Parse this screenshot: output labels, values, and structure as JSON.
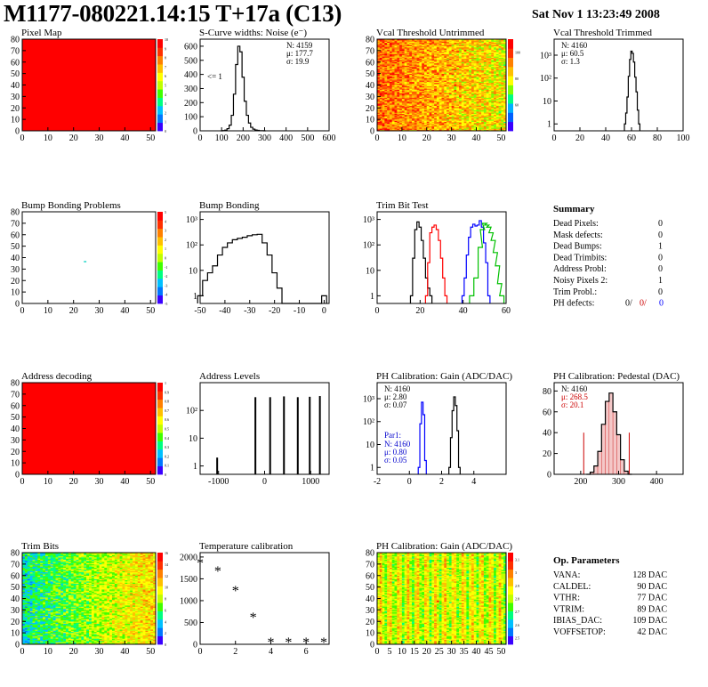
{
  "header": {
    "title": "M1177-080221.14:15 T+17a (C13)",
    "date": "Sat Nov  1 13:23:49 2008"
  },
  "chart_data": [
    {
      "id": "pixel-map",
      "type": "heatmap",
      "title": "Pixel Map",
      "xticks": [
        "0",
        "10",
        "20",
        "30",
        "40",
        "50"
      ],
      "yticks": [
        "0",
        "10",
        "20",
        "30",
        "40",
        "50",
        "60",
        "70",
        "80"
      ],
      "xlim": [
        0,
        52
      ],
      "ylim": [
        0,
        80
      ],
      "uniform_color": "#ff0000",
      "zticks": [
        "0",
        "1",
        "2",
        "3",
        "4",
        "5",
        "6",
        "7",
        "8",
        "9",
        "10"
      ],
      "zlim": [
        0,
        10
      ],
      "zcolors": [
        "#3a00ff",
        "#0077ff",
        "#00c0ff",
        "#00ff80",
        "#40ff00",
        "#c0ff00",
        "#ffff00",
        "#ffc000",
        "#ff8000",
        "#ff3000",
        "#ff0000"
      ]
    },
    {
      "id": "scurve-widths",
      "type": "line",
      "title": "S-Curve widths: Noise (e⁻)",
      "xticks": [
        "0",
        "100",
        "200",
        "300",
        "400",
        "500",
        "600"
      ],
      "yticks": [
        "0",
        "100",
        "200",
        "300",
        "400",
        "500",
        "600"
      ],
      "xlim": [
        0,
        600
      ],
      "ylim": [
        0,
        650
      ],
      "annotation": "<= 1",
      "stats": [
        "N: 4159",
        "μ: 177.7",
        "σ: 19.9"
      ],
      "x": [
        100,
        110,
        120,
        130,
        140,
        150,
        160,
        170,
        180,
        190,
        200,
        210,
        220,
        230,
        240,
        250,
        260,
        270,
        280,
        290,
        300
      ],
      "y": [
        0,
        2,
        5,
        15,
        40,
        110,
        260,
        470,
        600,
        560,
        380,
        210,
        110,
        55,
        25,
        12,
        6,
        3,
        1,
        1,
        0
      ]
    },
    {
      "id": "vcal-untrimmed",
      "type": "heatmap",
      "title": "Vcal Threshold Untrimmed",
      "xticks": [
        "0",
        "10",
        "20",
        "30",
        "40",
        "50"
      ],
      "yticks": [
        "0",
        "10",
        "20",
        "30",
        "40",
        "50",
        "60",
        "70",
        "80"
      ],
      "xlim": [
        0,
        52
      ],
      "ylim": [
        0,
        80
      ],
      "zticks": [
        "60",
        "80",
        "100"
      ],
      "zlim": [
        40,
        110
      ],
      "zcolors": [
        "#3a00ff",
        "#0060ff",
        "#00b0ff",
        "#00ff80",
        "#80ff00",
        "#ffff00",
        "#ffc000",
        "#ff8000",
        "#ff3000",
        "#ff0000"
      ]
    },
    {
      "id": "vcal-trimmed",
      "type": "line",
      "title": "Vcal Threshold Trimmed",
      "log": true,
      "xticks": [
        "0",
        "20",
        "40",
        "60",
        "80",
        "100"
      ],
      "yticks": [
        "1",
        "10",
        "10²",
        "10³"
      ],
      "xlim": [
        0,
        100
      ],
      "ylim": [
        0.5,
        5000
      ],
      "stats": [
        "N: 4160",
        "μ: 60.5",
        "σ:  1.3"
      ],
      "x": [
        55,
        56,
        57,
        58,
        59,
        60,
        61,
        62,
        63,
        64,
        65,
        66
      ],
      "y": [
        1,
        3,
        15,
        120,
        650,
        1500,
        1200,
        500,
        110,
        25,
        4,
        1
      ]
    },
    {
      "id": "bump-bonding-problems",
      "type": "heatmap",
      "title": "Bump Bonding Problems",
      "xticks": [
        "0",
        "10",
        "20",
        "30",
        "40",
        "50"
      ],
      "yticks": [
        "0",
        "10",
        "20",
        "30",
        "40",
        "50",
        "60",
        "70",
        "80"
      ],
      "xlim": [
        0,
        52
      ],
      "ylim": [
        0,
        80
      ],
      "zticks": [
        "-5",
        "-4",
        "-3",
        "-2",
        "-1",
        "0",
        "1",
        "2",
        "3",
        "4",
        "5"
      ],
      "zlim": [
        -5,
        5
      ],
      "zcolors": [
        "#3a00ff",
        "#0077ff",
        "#00c0ff",
        "#00ff80",
        "#40ff00",
        "#c0ff00",
        "#ffff00",
        "#ffc000",
        "#ff8000",
        "#ff3000",
        "#ff0000"
      ],
      "points": [
        {
          "x": 24,
          "y": 36
        }
      ]
    },
    {
      "id": "bump-bonding",
      "type": "line",
      "title": "Bump Bonding",
      "log": true,
      "xticks": [
        "-50",
        "-40",
        "-30",
        "-20",
        "-10",
        "0"
      ],
      "yticks": [
        "1",
        "10",
        "10²",
        "10³"
      ],
      "xlim": [
        -50,
        2
      ],
      "ylim": [
        0.5,
        2000
      ],
      "x": [
        -50,
        -48,
        -46,
        -44,
        -42,
        -40,
        -38,
        -36,
        -34,
        -32,
        -30,
        -28,
        -26,
        -24,
        -22,
        -20,
        -18,
        -16,
        -14,
        -12,
        -10,
        -8,
        -6,
        -4,
        -2,
        0
      ],
      "y": [
        1,
        4,
        8,
        15,
        40,
        80,
        120,
        160,
        180,
        200,
        230,
        250,
        260,
        120,
        40,
        8,
        2,
        0,
        0,
        0,
        0,
        0,
        0,
        0,
        0,
        1
      ]
    },
    {
      "id": "trim-bit-test",
      "type": "line",
      "title": "Trim Bit Test",
      "log": true,
      "xticks": [
        "0",
        "20",
        "40",
        "60"
      ],
      "yticks": [
        "1",
        "10",
        "10²",
        "10³"
      ],
      "xlim": [
        0,
        60
      ],
      "ylim": [
        0.5,
        2000
      ],
      "series": [
        {
          "color": "#000000",
          "x": [
            16,
            17,
            18,
            19,
            20,
            21,
            22,
            23,
            24,
            25
          ],
          "y": [
            1,
            30,
            400,
            800,
            500,
            150,
            30,
            5,
            2,
            1
          ]
        },
        {
          "color": "#ff0000",
          "x": [
            23,
            24,
            25,
            26,
            27,
            28,
            29,
            30,
            31,
            32
          ],
          "y": [
            1,
            20,
            300,
            500,
            600,
            400,
            150,
            30,
            5,
            1
          ]
        },
        {
          "color": "#0000ff",
          "x": [
            40,
            41,
            42,
            43,
            44,
            45,
            46,
            47,
            48,
            49,
            50,
            51,
            52
          ],
          "y": [
            1,
            5,
            40,
            200,
            500,
            650,
            550,
            600,
            900,
            500,
            120,
            20,
            1
          ]
        },
        {
          "color": "#00c000",
          "x": [
            44,
            46,
            48,
            49,
            50,
            51,
            52,
            53,
            54,
            55,
            56,
            57,
            58
          ],
          "y": [
            1,
            5,
            80,
            400,
            700,
            600,
            500,
            300,
            150,
            50,
            15,
            3,
            1
          ]
        }
      ]
    },
    {
      "id": "address-decoding",
      "type": "heatmap",
      "title": "Address decoding",
      "xticks": [
        "0",
        "10",
        "20",
        "30",
        "40",
        "50"
      ],
      "yticks": [
        "0",
        "10",
        "20",
        "30",
        "40",
        "50",
        "60",
        "70",
        "80"
      ],
      "xlim": [
        0,
        52
      ],
      "ylim": [
        0,
        80
      ],
      "uniform_color": "#ff0000",
      "zticks": [
        "0",
        "0.1",
        "0.2",
        "0.3",
        "0.4",
        "0.5",
        "0.6",
        "0.7",
        "0.8",
        "0.9",
        "1"
      ],
      "zlim": [
        0,
        1
      ],
      "zcolors": [
        "#3a00ff",
        "#0077ff",
        "#00c0ff",
        "#00ff80",
        "#40ff00",
        "#c0ff00",
        "#ffff00",
        "#ffc000",
        "#ff8000",
        "#ff3000",
        "#ff0000"
      ]
    },
    {
      "id": "address-levels",
      "type": "bar",
      "title": "Address Levels",
      "log": true,
      "xticks": [
        "-1000",
        "0",
        "1000"
      ],
      "yticks": [
        "1",
        "10",
        "10²"
      ],
      "xlim": [
        -1400,
        1400
      ],
      "ylim": [
        0.5,
        1000
      ],
      "x": [
        -1030,
        -200,
        120,
        420,
        720,
        980,
        1200
      ],
      "y": [
        2,
        300,
        300,
        320,
        300,
        310,
        330
      ]
    },
    {
      "id": "ph-gain-hist",
      "type": "line",
      "title": "PH Calibration: Gain (ADC/DAC)",
      "log": true,
      "xticks": [
        "-2",
        "0",
        "2",
        "4"
      ],
      "yticks": [
        "1",
        "10",
        "10²",
        "10³"
      ],
      "xlim": [
        -2,
        6
      ],
      "ylim": [
        0.5,
        5000
      ],
      "stats": [
        "N: 4160",
        "μ: 2.80",
        "σ: 0.07"
      ],
      "par1_label": "Par1:",
      "par1_stats": [
        "N: 4160",
        "μ: 0.80",
        "σ: 0.05"
      ],
      "series": [
        {
          "color": "#000000",
          "x": [
            2.5,
            2.6,
            2.7,
            2.8,
            2.9,
            3.0,
            3.1
          ],
          "y": [
            1,
            20,
            300,
            1200,
            500,
            40,
            1
          ]
        },
        {
          "color": "#0000ff",
          "x": [
            0.6,
            0.7,
            0.8,
            0.9,
            1.0
          ],
          "y": [
            1,
            80,
            700,
            200,
            2
          ]
        }
      ]
    },
    {
      "id": "ph-pedestal",
      "type": "bar",
      "title": "PH Calibration: Pedestal (DAC)",
      "xticks": [
        "200",
        "300",
        "400"
      ],
      "yticks": [
        "0",
        "20",
        "40",
        "60",
        "80"
      ],
      "xlim": [
        130,
        470
      ],
      "ylim": [
        0,
        88
      ],
      "stats": [
        "N: 4160",
        "μ: 268.5",
        "σ: 20.1"
      ],
      "x": [
        220,
        230,
        240,
        250,
        260,
        270,
        280,
        290,
        300,
        310,
        320,
        330
      ],
      "y": [
        0,
        2,
        8,
        22,
        48,
        70,
        78,
        60,
        38,
        14,
        3,
        0
      ]
    },
    {
      "id": "trim-bits",
      "type": "heatmap",
      "title": "Trim Bits",
      "xticks": [
        "0",
        "10",
        "20",
        "30",
        "40",
        "50"
      ],
      "yticks": [
        "0",
        "10",
        "20",
        "30",
        "40",
        "50",
        "60",
        "70",
        "80"
      ],
      "xlim": [
        0,
        52
      ],
      "ylim": [
        0,
        80
      ],
      "zticks": [
        "0",
        "2",
        "4",
        "6",
        "8",
        "10",
        "12",
        "14",
        "16"
      ],
      "zlim": [
        0,
        16
      ],
      "zcolors": [
        "#3a00ff",
        "#0077ff",
        "#00c0ff",
        "#00ff80",
        "#40ff00",
        "#c0ff00",
        "#ffff00",
        "#ffc000",
        "#ff8000",
        "#ff3000",
        "#ff0000"
      ]
    },
    {
      "id": "temperature-calibration",
      "type": "scatter",
      "title": "Temperature calibration",
      "xticks": [
        "0",
        "2",
        "4",
        "6"
      ],
      "yticks": [
        "0",
        "500",
        "1000",
        "1500",
        "2000"
      ],
      "xlim": [
        0,
        7.3
      ],
      "ylim": [
        0,
        2100
      ],
      "x": [
        0,
        1,
        2,
        3,
        4,
        5,
        6,
        7
      ],
      "y": [
        1880,
        1690,
        1240,
        630,
        60,
        60,
        60,
        60
      ]
    },
    {
      "id": "ph-gain-map",
      "type": "heatmap",
      "title": "PH Calibration: Gain (ADC/DAC)",
      "xticks": [
        "0",
        "5",
        "10",
        "15",
        "20",
        "25",
        "30",
        "35",
        "40",
        "45",
        "50"
      ],
      "yticks": [
        "0",
        "10",
        "20",
        "30",
        "40",
        "50",
        "60",
        "70",
        "80"
      ],
      "xlim": [
        0,
        52
      ],
      "ylim": [
        0,
        80
      ],
      "zticks": [
        "2.5",
        "2.6",
        "2.7",
        "2.8",
        "2.9",
        "3",
        "3.1"
      ],
      "zlim": [
        2.45,
        3.15
      ],
      "zcolors": [
        "#3a00ff",
        "#0077ff",
        "#00c0ff",
        "#00ff80",
        "#40ff00",
        "#c0ff00",
        "#ffff00",
        "#ffc000",
        "#ff8000",
        "#ff3000",
        "#ff0000"
      ]
    }
  ],
  "summary": {
    "title": "Summary",
    "rows": [
      {
        "label": "Dead Pixels:",
        "value": "0"
      },
      {
        "label": "Mask defects:",
        "value": "0"
      },
      {
        "label": "Dead Bumps:",
        "value": "1"
      },
      {
        "label": "Dead Trimbits:",
        "value": "0"
      },
      {
        "label": "Address Probl:",
        "value": "0"
      },
      {
        "label": "Noisy Pixels 2:",
        "value": "1"
      },
      {
        "label": "Trim Probl.:",
        "value": "0"
      }
    ],
    "ph_label": "PH defects:",
    "ph_values": [
      {
        "v": "0/",
        "color": "#000000"
      },
      {
        "v": "0/",
        "color": "#cc0000"
      },
      {
        "v": "0",
        "color": "#0000ff"
      }
    ]
  },
  "op_params": {
    "title": "Op. Parameters",
    "rows": [
      {
        "label": "VANA:",
        "value": "128 DAC"
      },
      {
        "label": "CALDEL:",
        "value": "90 DAC"
      },
      {
        "label": "VTHR:",
        "value": "77 DAC"
      },
      {
        "label": "VTRIM:",
        "value": "89 DAC"
      },
      {
        "label": "IBIAS_DAC:",
        "value": "109 DAC"
      },
      {
        "label": "VOFFSETOP:",
        "value": "42 DAC"
      }
    ]
  }
}
